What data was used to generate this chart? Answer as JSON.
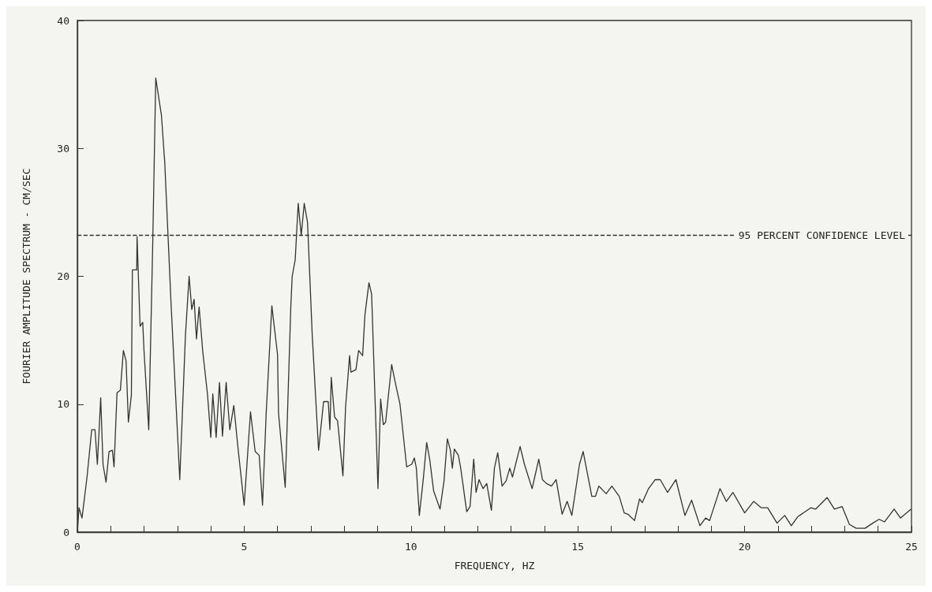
{
  "chart_data": {
    "type": "line",
    "xlabel": "FREQUENCY, HZ",
    "ylabel": "FOURIER AMPLITUDE SPECTRUM - CM/SEC",
    "x": [
      0,
      0.05,
      0.14,
      0.29,
      0.43,
      0.53,
      0.6,
      0.64,
      0.7,
      0.77,
      0.86,
      0.95,
      1.05,
      1.1,
      1.19,
      1.29,
      1.38,
      1.46,
      1.53,
      1.62,
      1.65,
      1.78,
      1.79,
      1.88,
      1.96,
      2.0,
      2.14,
      2.26,
      2.35,
      2.52,
      2.62,
      2.81,
      3.07,
      3.24,
      3.35,
      3.43,
      3.5,
      3.57,
      3.65,
      3.76,
      3.9,
      4.0,
      4.06,
      4.16,
      4.26,
      4.35,
      4.46,
      4.57,
      4.69,
      4.81,
      5.0,
      5.19,
      5.33,
      5.45,
      5.55,
      5.66,
      5.83,
      5.9,
      6.0,
      6.03,
      6.23,
      6.4,
      6.44,
      6.53,
      6.62,
      6.71,
      6.8,
      6.9,
      7.04,
      7.23,
      7.38,
      7.52,
      7.57,
      7.61,
      7.71,
      7.8,
      7.96,
      8.04,
      8.16,
      8.2,
      8.35,
      8.43,
      8.55,
      8.62,
      8.74,
      8.82,
      9.01,
      9.09,
      9.17,
      9.24,
      9.42,
      9.52,
      9.67,
      9.87,
      10.02,
      10.1,
      10.16,
      10.25,
      10.37,
      10.47,
      10.56,
      10.68,
      10.87,
      10.99,
      11.09,
      11.18,
      11.24,
      11.3,
      11.42,
      11.49,
      11.67,
      11.77,
      11.88,
      11.95,
      12.04,
      12.16,
      12.27,
      12.41,
      12.5,
      12.6,
      12.73,
      12.85,
      12.96,
      13.04,
      13.27,
      13.4,
      13.63,
      13.83,
      13.94,
      14.06,
      14.21,
      14.35,
      14.53,
      14.68,
      14.82,
      15.05,
      15.16,
      15.42,
      15.53,
      15.63,
      15.85,
      16.02,
      16.24,
      16.39,
      16.5,
      16.7,
      16.85,
      16.93,
      17.12,
      17.32,
      17.47,
      17.69,
      17.94,
      18.21,
      18.41,
      18.66,
      18.83,
      18.95,
      19.26,
      19.45,
      19.65,
      20.0,
      20.27,
      20.5,
      20.69,
      20.97,
      21.2,
      21.4,
      21.59,
      21.98,
      22.13,
      22.47,
      22.69,
      22.92,
      23.14,
      23.34,
      23.61,
      23.84,
      24.03,
      24.19,
      24.48,
      24.67,
      24.99
    ],
    "values": [
      0,
      1.9,
      1.1,
      4.3,
      8.0,
      8.0,
      5.3,
      7.3,
      10.5,
      5.3,
      3.9,
      6.3,
      6.4,
      5.1,
      10.9,
      11.1,
      14.2,
      13.4,
      8.6,
      10.7,
      20.5,
      20.5,
      23.1,
      16.1,
      16.4,
      14.1,
      8.0,
      22.6,
      35.5,
      32.6,
      28.9,
      17.8,
      4.1,
      15.4,
      20.0,
      17.4,
      18.2,
      15.1,
      17.6,
      14.1,
      10.8,
      7.4,
      10.8,
      7.4,
      11.7,
      7.5,
      11.7,
      8.0,
      9.9,
      6.7,
      2.1,
      9.4,
      6.3,
      6.0,
      2.1,
      9.3,
      17.7,
      16.1,
      13.9,
      9.3,
      3.5,
      17.8,
      20.0,
      21.3,
      25.7,
      23.2,
      25.7,
      24.2,
      15.4,
      6.4,
      10.2,
      10.2,
      8.0,
      12.1,
      9.0,
      8.7,
      4.4,
      9.8,
      13.8,
      12.5,
      12.7,
      14.2,
      13.8,
      17.0,
      19.5,
      18.6,
      3.4,
      10.4,
      8.4,
      8.6,
      13.1,
      11.8,
      10.0,
      5.1,
      5.3,
      5.8,
      5.0,
      1.3,
      4.2,
      7.0,
      5.7,
      3.2,
      1.8,
      4.0,
      7.3,
      6.4,
      5.0,
      6.5,
      6.0,
      5.0,
      1.6,
      2.0,
      5.7,
      3.1,
      4.1,
      3.4,
      3.8,
      1.7,
      5.0,
      6.2,
      3.6,
      4.0,
      5.0,
      4.3,
      6.7,
      5.3,
      3.4,
      5.7,
      4.1,
      3.8,
      3.6,
      4.1,
      1.4,
      2.4,
      1.3,
      5.3,
      6.3,
      2.8,
      2.8,
      3.6,
      3.0,
      3.6,
      2.8,
      1.5,
      1.4,
      0.9,
      2.6,
      2.3,
      3.4,
      4.1,
      4.1,
      3.1,
      4.1,
      1.3,
      2.5,
      0.5,
      1.1,
      0.9,
      3.4,
      2.4,
      3.1,
      1.5,
      2.4,
      1.9,
      1.9,
      0.7,
      1.3,
      0.5,
      1.2,
      1.9,
      1.8,
      2.7,
      1.8,
      2.0,
      0.6,
      0.3,
      0.3,
      0.7,
      1.0,
      0.8,
      1.8,
      1.1,
      1.8
    ],
    "color": "#333333",
    "line_style": "solid",
    "marker": "none",
    "xlim": [
      0,
      25
    ],
    "xticks": [
      0,
      {
        "value": 1,
        "label": null
      },
      {
        "value": 2,
        "label": null
      },
      {
        "value": 3,
        "label": null
      },
      {
        "value": 4,
        "label": null
      },
      5,
      {
        "value": 6,
        "label": null
      },
      {
        "value": 7,
        "label": null
      },
      {
        "value": 8,
        "label": null
      },
      {
        "value": 9,
        "label": null
      },
      10,
      {
        "value": 11,
        "label": null
      },
      {
        "value": 12,
        "label": null
      },
      {
        "value": 13,
        "label": null
      },
      {
        "value": 14,
        "label": null
      },
      15,
      {
        "value": 16,
        "label": null
      },
      {
        "value": 17,
        "label": null
      },
      {
        "value": 18,
        "label": null
      },
      {
        "value": 19,
        "label": null
      },
      20,
      {
        "value": 21,
        "label": null
      },
      {
        "value": 22,
        "label": null
      },
      {
        "value": 23,
        "label": null
      },
      {
        "value": 24,
        "label": null
      },
      25
    ],
    "ylim": [
      0,
      40
    ],
    "yticks": [
      0,
      10,
      20,
      30,
      40
    ],
    "grid": false,
    "ref_lines": [
      {
        "axis": "y",
        "value": 23.2,
        "label": "95 PERCENT CONFIDENCE LEVEL",
        "line_style": "dashed",
        "color": "#333333"
      }
    ]
  }
}
